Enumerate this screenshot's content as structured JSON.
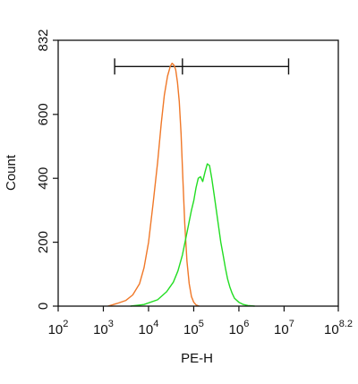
{
  "chart_data": {
    "type": "line",
    "title": "",
    "xlabel": "PE-H",
    "ylabel": "Count",
    "xscale": "log",
    "xlim": [
      2,
      8.2
    ],
    "ylim": [
      0,
      832
    ],
    "x_tick_labels": [
      {
        "base": "10",
        "exp": "2"
      },
      {
        "base": "10",
        "exp": "3"
      },
      {
        "base": "10",
        "exp": "4"
      },
      {
        "base": "10",
        "exp": "5"
      },
      {
        "base": "10",
        "exp": "6"
      },
      {
        "base": "10",
        "exp": "7"
      },
      {
        "base": "10",
        "exp": "8.2"
      }
    ],
    "y_ticks": [
      0,
      200,
      400,
      600,
      832
    ],
    "grid": false,
    "gate": {
      "x_start": 3.25,
      "x_divider": 4.75,
      "x_end": 7.1,
      "y": 750
    },
    "series": [
      {
        "color": "#F07828",
        "x": [
          3.1,
          3.3,
          3.5,
          3.65,
          3.8,
          3.9,
          4.0,
          4.1,
          4.2,
          4.28,
          4.35,
          4.42,
          4.48,
          4.52,
          4.56,
          4.6,
          4.64,
          4.68,
          4.72,
          4.76,
          4.8,
          4.85,
          4.9,
          4.95,
          5.0,
          5.05,
          5.12
        ],
        "y": [
          0,
          8,
          18,
          35,
          70,
          120,
          200,
          320,
          450,
          570,
          660,
          720,
          750,
          760,
          755,
          740,
          700,
          640,
          540,
          400,
          260,
          140,
          70,
          30,
          12,
          4,
          0
        ]
      },
      {
        "color": "#22DD22",
        "x": [
          3.6,
          3.9,
          4.2,
          4.4,
          4.55,
          4.65,
          4.75,
          4.85,
          4.95,
          5.0,
          5.05,
          5.1,
          5.15,
          5.2,
          5.25,
          5.3,
          5.35,
          5.4,
          5.45,
          5.5,
          5.55,
          5.6,
          5.65,
          5.7,
          5.75,
          5.8,
          5.85,
          5.9,
          6.0,
          6.1,
          6.2,
          6.35
        ],
        "y": [
          0,
          5,
          20,
          45,
          75,
          110,
          160,
          230,
          300,
          330,
          370,
          400,
          405,
          390,
          420,
          445,
          440,
          400,
          350,
          300,
          250,
          200,
          160,
          120,
          85,
          60,
          40,
          25,
          12,
          5,
          2,
          0
        ]
      }
    ]
  }
}
